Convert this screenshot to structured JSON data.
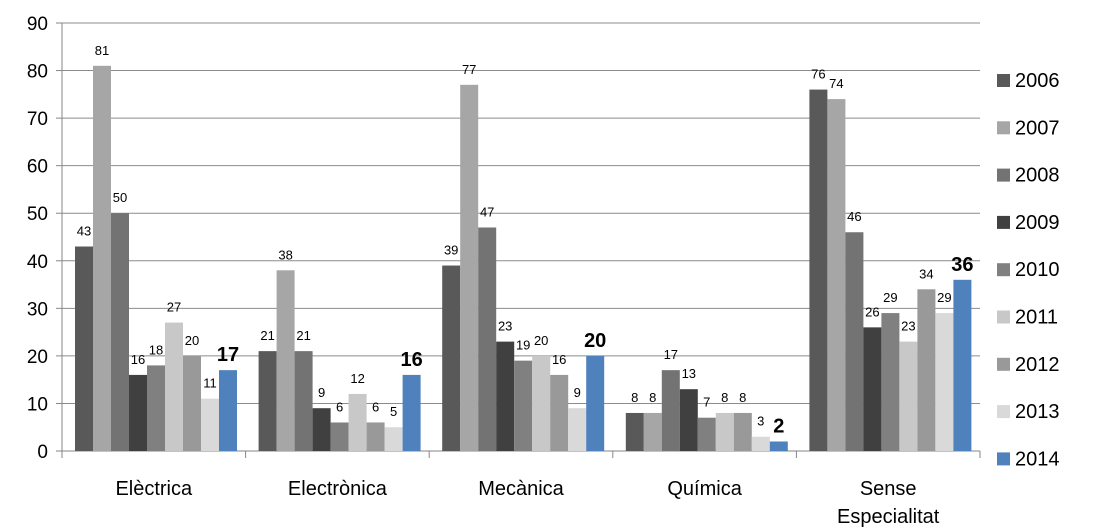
{
  "chart_data": {
    "type": "bar",
    "categories": [
      [
        "Elèctrica"
      ],
      [
        "Electrònica"
      ],
      [
        "Mecànica"
      ],
      [
        "Química"
      ],
      [
        "Sense",
        "Especialitat"
      ]
    ],
    "series": [
      {
        "name": "2006",
        "color": "#595959",
        "values": [
          43,
          21,
          39,
          8,
          76
        ]
      },
      {
        "name": "2007",
        "color": "#a6a6a6",
        "values": [
          81,
          38,
          77,
          8,
          74
        ]
      },
      {
        "name": "2008",
        "color": "#737373",
        "values": [
          50,
          21,
          47,
          17,
          46
        ]
      },
      {
        "name": "2009",
        "color": "#404040",
        "values": [
          16,
          9,
          23,
          13,
          26
        ]
      },
      {
        "name": "2010",
        "color": "#808080",
        "values": [
          18,
          6,
          19,
          7,
          29
        ]
      },
      {
        "name": "2011",
        "color": "#c8c8c8",
        "values": [
          27,
          12,
          20,
          8,
          23
        ]
      },
      {
        "name": "2012",
        "color": "#999999",
        "values": [
          20,
          6,
          16,
          8,
          34
        ]
      },
      {
        "name": "2013",
        "color": "#d9d9d9",
        "values": [
          11,
          5,
          9,
          3,
          29
        ]
      },
      {
        "name": "2014",
        "color": "#4f81bd",
        "values": [
          17,
          16,
          20,
          2,
          36
        ],
        "bold_labels": true
      }
    ],
    "ylim": [
      0,
      90
    ],
    "yticks": [
      0,
      10,
      20,
      30,
      40,
      50,
      60,
      70,
      80,
      90
    ],
    "grid": true,
    "legend": "right"
  }
}
